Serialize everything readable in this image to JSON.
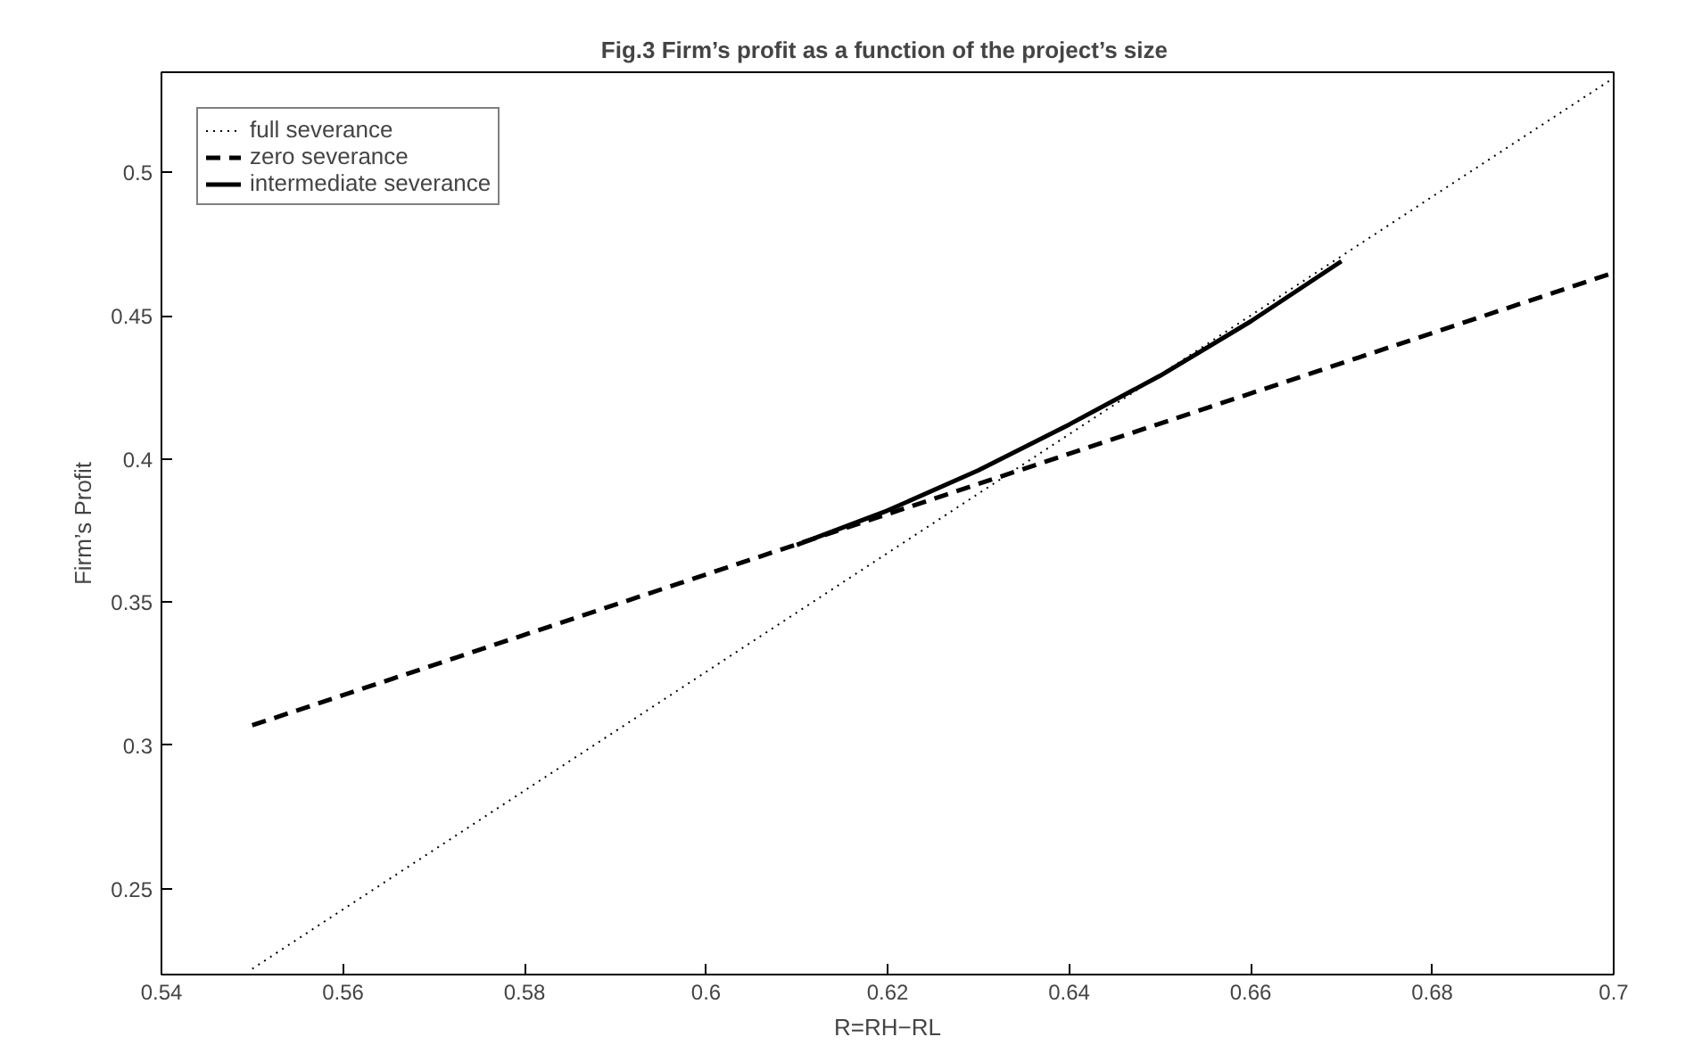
{
  "chart_data": {
    "type": "line",
    "title": "Fig.3 Firm’s profit  as a function of the project’s size",
    "xlabel": "R=RH−RL",
    "ylabel": "Firm’s Profit",
    "xlim": [
      0.54,
      0.7
    ],
    "xticks": [
      0.54,
      0.56,
      0.58,
      0.6,
      0.62,
      0.64,
      0.66,
      0.68,
      0.7
    ],
    "ylim": [
      0.22,
      0.535
    ],
    "yticks": [
      0.25,
      0.3,
      0.35,
      0.4,
      0.45,
      0.5
    ],
    "grid": false,
    "legend": "top left",
    "series": [
      {
        "name": "full severance",
        "color": "#000000",
        "line_style": "dotted",
        "x": [
          0.55,
          0.7
        ],
        "values": [
          0.222,
          0.533
        ]
      },
      {
        "name": "zero severance",
        "color": "#000000",
        "line_style": "dashed",
        "x": [
          0.55,
          0.7
        ],
        "values": [
          0.307,
          0.465
        ]
      },
      {
        "name": "intermediate severance",
        "color": "#000000",
        "line_style": "solid",
        "x": [
          0.61,
          0.62,
          0.63,
          0.64,
          0.65,
          0.66,
          0.67
        ],
        "values": [
          0.37,
          0.382,
          0.396,
          0.412,
          0.429,
          0.448,
          0.469
        ]
      }
    ]
  }
}
